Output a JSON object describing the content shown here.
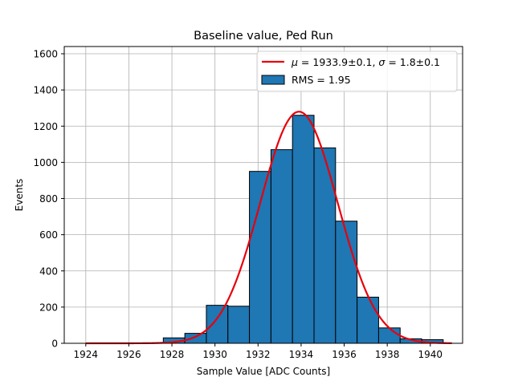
{
  "chart_data": {
    "type": "bar",
    "title": "Baseline value, Ped Run",
    "xlabel": "Sample Value [ADC Counts]",
    "ylabel": "Events",
    "xlim": [
      1923,
      1941.5
    ],
    "ylim": [
      0,
      1640
    ],
    "grid": true,
    "legend_position": "top-right",
    "xticks": [
      1924,
      1926,
      1928,
      1930,
      1932,
      1934,
      1936,
      1938,
      1940
    ],
    "yticks": [
      0,
      200,
      400,
      600,
      800,
      1000,
      1200,
      1400,
      1600
    ],
    "histogram": {
      "name": "RMS = 1.95",
      "bin_edges": [
        1927.6,
        1928.6,
        1929.6,
        1930.6,
        1931.6,
        1932.6,
        1933.6,
        1934.6,
        1935.6,
        1936.6,
        1937.6,
        1938.6,
        1939.6,
        1940.6
      ],
      "counts": [
        30,
        55,
        210,
        205,
        950,
        1070,
        1260,
        1080,
        675,
        255,
        85,
        25,
        20
      ],
      "color": "#1f77b4",
      "edge_color": "#000000"
    },
    "fit": {
      "name_text": "= 1933.9±0.1,  = 1.8±0.1",
      "mu_symbol": "μ",
      "sigma_symbol": "σ",
      "mu": 1933.9,
      "mu_err": 0.1,
      "sigma": 1.8,
      "sigma_err": 0.1,
      "amplitude": 1280,
      "x_range": [
        1924,
        1941
      ],
      "color": "#e8000b"
    }
  },
  "legend": {
    "fit_mu_label": "μ",
    "fit_mu_value": " = 1933.9±0.1, ",
    "fit_sigma_label": "σ",
    "fit_sigma_value": " = 1.8±0.1",
    "hist_label": "RMS = 1.95"
  }
}
